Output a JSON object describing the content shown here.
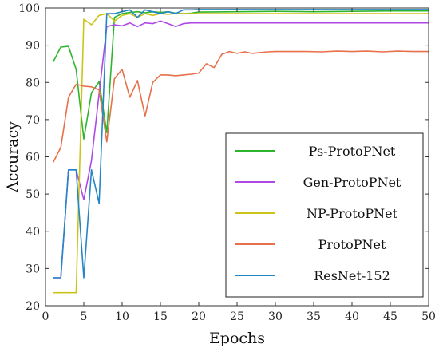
{
  "chart_data": {
    "type": "line",
    "xlabel": "Epochs",
    "ylabel": "Accuracy",
    "xlim": [
      0,
      50
    ],
    "ylim": [
      20,
      100
    ],
    "xticks": [
      0,
      5,
      10,
      15,
      20,
      25,
      30,
      35,
      40,
      45,
      50
    ],
    "yticks": [
      20,
      30,
      40,
      50,
      60,
      70,
      80,
      90,
      100
    ],
    "grid": false,
    "legend_position": "bottom-right",
    "series": [
      {
        "name": "Ps-ProtoPNet",
        "color": "#2db52d",
        "x": [
          1,
          2,
          3,
          4,
          5,
          6,
          7,
          8,
          9,
          10,
          11,
          12,
          13,
          14,
          15,
          16,
          17,
          18,
          19,
          20,
          25,
          30,
          35,
          40,
          45,
          50
        ],
        "y": [
          85.5,
          89.5,
          89.7,
          83.5,
          64.8,
          77.2,
          80.2,
          66.5,
          97.5,
          98.5,
          98.8,
          99.0,
          98.7,
          99.0,
          98.8,
          99.0,
          98.6,
          98.5,
          98.6,
          98.9,
          99.0,
          99.1,
          99.0,
          99.1,
          99.2,
          99.2
        ]
      },
      {
        "name": "Gen-ProtoPNet",
        "color": "#b048e6",
        "x": [
          1,
          2,
          3,
          4,
          5,
          6,
          7,
          8,
          9,
          10,
          11,
          12,
          13,
          14,
          15,
          16,
          17,
          18,
          19,
          20,
          25,
          30,
          35,
          40,
          45,
          50
        ],
        "y": [
          27.5,
          27.5,
          56.5,
          56.5,
          48.5,
          59.0,
          77.0,
          95.0,
          95.5,
          95.2,
          96.0,
          95.0,
          96.0,
          95.8,
          96.5,
          95.8,
          95.0,
          95.8,
          96.0,
          96.0,
          96.0,
          96.0,
          96.0,
          96.0,
          96.0,
          96.0
        ]
      },
      {
        "name": "NP-ProtoPNet",
        "color": "#cdc41a",
        "x": [
          1,
          2,
          3,
          4,
          5,
          6,
          7,
          8,
          9,
          10,
          11,
          12,
          13,
          14,
          15,
          16,
          17,
          18,
          19,
          20,
          25,
          30,
          35,
          40,
          45,
          50
        ],
        "y": [
          23.5,
          23.5,
          23.5,
          23.5,
          97.0,
          95.5,
          98.0,
          98.5,
          96.5,
          98.0,
          98.5,
          97.5,
          98.5,
          98.0,
          98.5,
          98.3,
          98.5,
          98.5,
          98.5,
          98.5,
          98.5,
          98.5,
          98.5,
          98.5,
          98.5,
          98.5
        ]
      },
      {
        "name": "ProtoPNet",
        "color": "#e8704a",
        "x": [
          1,
          2,
          3,
          4,
          5,
          6,
          7,
          8,
          9,
          10,
          11,
          12,
          13,
          14,
          15,
          16,
          17,
          18,
          19,
          20,
          21,
          22,
          23,
          24,
          25,
          26,
          27,
          28,
          29,
          30,
          32,
          34,
          36,
          38,
          40,
          42,
          44,
          46,
          48,
          50
        ],
        "y": [
          58.5,
          62.5,
          76.0,
          79.5,
          79.0,
          78.8,
          78.0,
          64.0,
          81.0,
          83.5,
          76.0,
          80.5,
          71.0,
          80.0,
          82.0,
          82.0,
          81.8,
          82.0,
          82.2,
          82.5,
          85.0,
          84.0,
          87.5,
          88.3,
          87.8,
          88.2,
          87.8,
          88.0,
          88.2,
          88.3,
          88.3,
          88.3,
          88.2,
          88.4,
          88.3,
          88.4,
          88.2,
          88.4,
          88.3,
          88.3
        ]
      },
      {
        "name": "ResNet-152",
        "color": "#2486c7",
        "x": [
          1,
          2,
          3,
          4,
          5,
          6,
          7,
          8,
          9,
          10,
          11,
          12,
          13,
          14,
          15,
          16,
          17,
          18,
          19,
          20,
          25,
          30,
          35,
          40,
          45,
          50
        ],
        "y": [
          27.5,
          27.5,
          56.5,
          56.5,
          27.5,
          56.5,
          47.5,
          98.5,
          98.5,
          99.0,
          99.5,
          97.5,
          99.5,
          99.0,
          98.5,
          99.0,
          98.5,
          99.5,
          99.5,
          99.6,
          99.6,
          99.6,
          99.6,
          99.6,
          99.6,
          99.6
        ]
      }
    ]
  }
}
